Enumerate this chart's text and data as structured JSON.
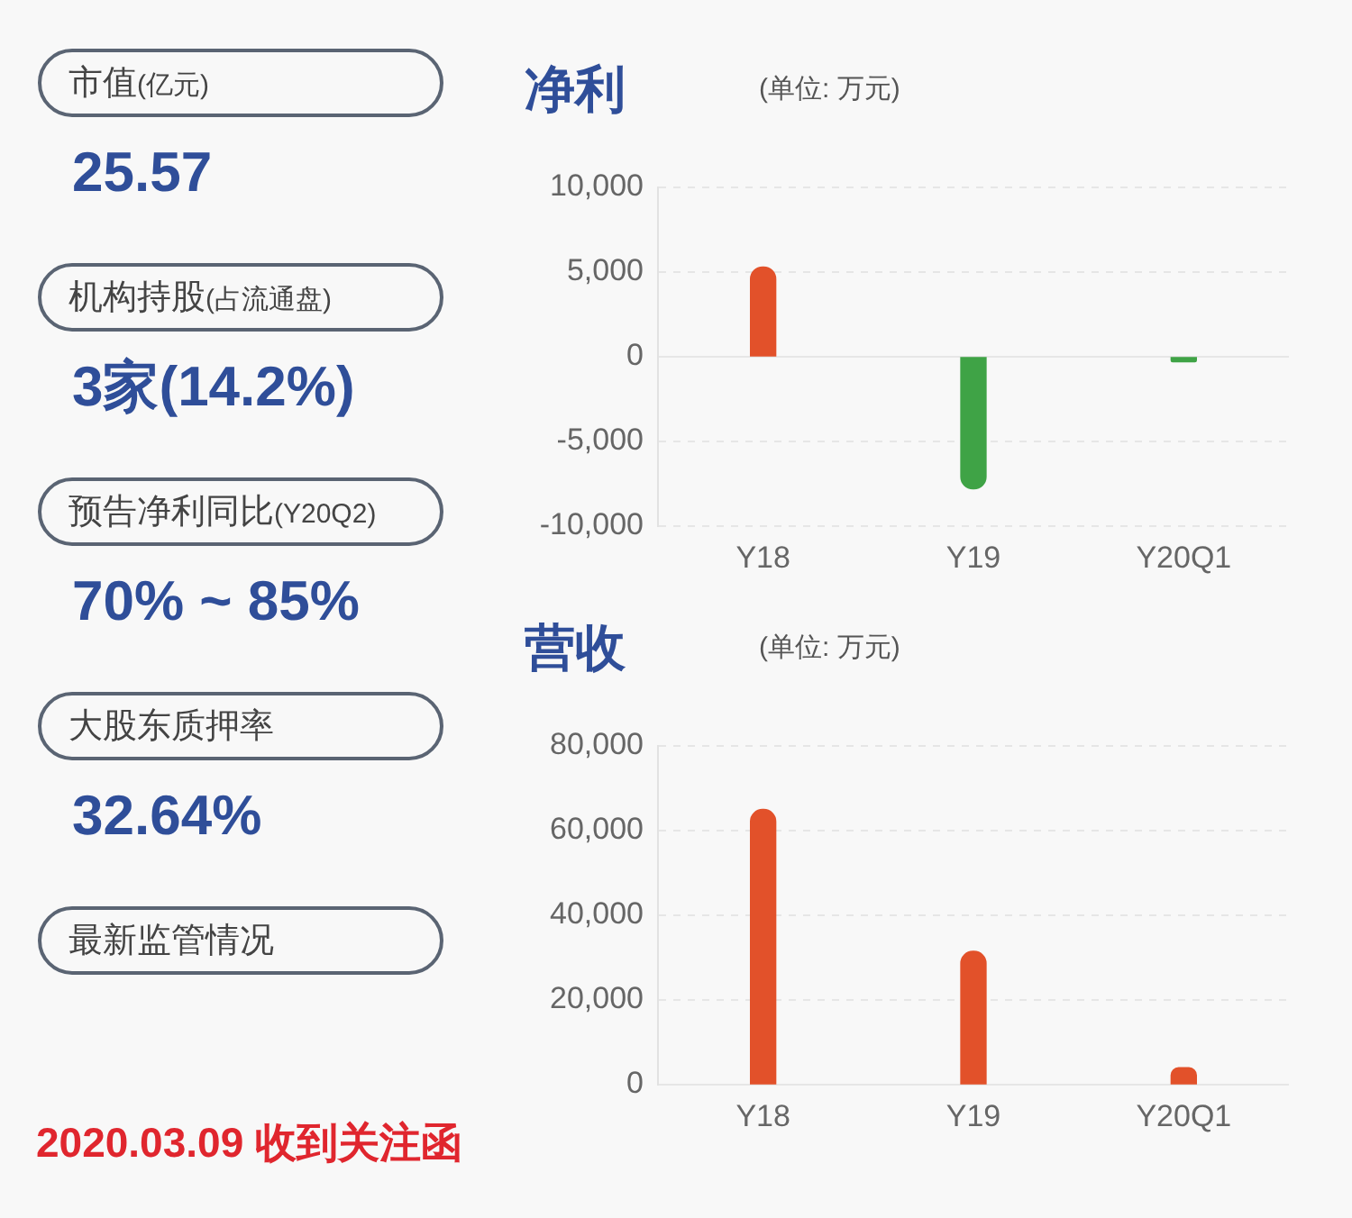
{
  "chart_data": [
    {
      "type": "other",
      "annotations": [
        "市值(亿元)",
        "25.57",
        "机构持股(占流通盘)",
        "3家(14.2%)",
        "预告净利同比(Y20Q2)",
        "70% ~ 85%",
        "大股东质押率",
        "32.64%",
        "最新监管情况",
        "2020.03.09 收到关注函"
      ]
    },
    {
      "type": "bar",
      "title": "净利",
      "subtitle": "(单位: 万元)",
      "categories": [
        "Y18",
        "Y19",
        "Y20Q1"
      ],
      "values": [
        5300,
        -7800,
        -300
      ],
      "colors": [
        "#e2512a",
        "#3fa346",
        "#3fa346"
      ],
      "ylim": [
        -10000,
        10000
      ],
      "yticks": [
        {
          "value": -10000,
          "label": "-10,000"
        },
        {
          "value": -5000,
          "label": "-5,000"
        },
        0,
        {
          "value": 5000,
          "label": "5,000"
        },
        {
          "value": 10000,
          "label": "10,000"
        }
      ],
      "grid": "y"
    },
    {
      "type": "bar",
      "title": "营收",
      "subtitle": "(单位: 万元)",
      "categories": [
        "Y18",
        "Y19",
        "Y20Q1"
      ],
      "values": [
        65000,
        31500,
        4000
      ],
      "colors": [
        "#e2512a",
        "#e2512a",
        "#e2512a"
      ],
      "ylim": [
        0,
        80000
      ],
      "yticks": [
        0,
        {
          "value": 20000,
          "label": "20,000"
        },
        {
          "value": 40000,
          "label": "40,000"
        },
        {
          "value": 60000,
          "label": "60,000"
        },
        {
          "value": 80000,
          "label": "80,000"
        }
      ],
      "grid": "y"
    }
  ]
}
